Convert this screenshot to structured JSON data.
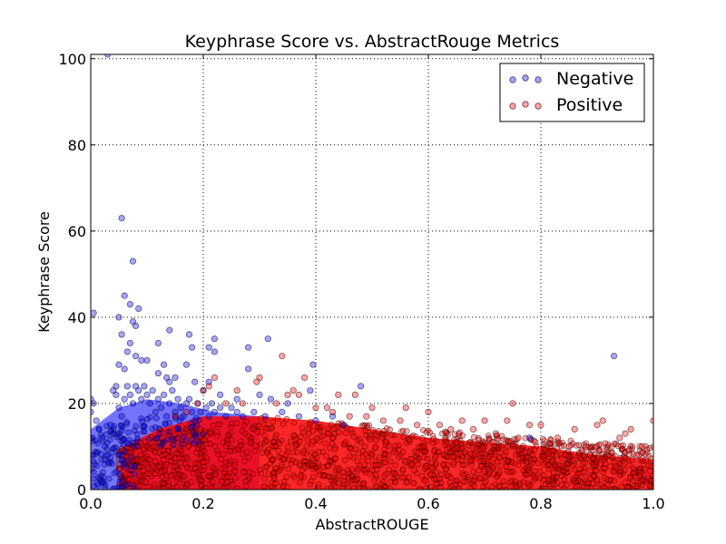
{
  "chart_data": {
    "type": "scatter",
    "title": "Keyphrase Score vs. AbstractRouge Metrics",
    "xlabel": "AbstractROUGE",
    "ylabel": "Keyphrase Score",
    "xlim": [
      0.0,
      1.0
    ],
    "ylim": [
      0,
      101
    ],
    "x_ticks": [
      "0.0",
      "0.2",
      "0.4",
      "0.6",
      "0.8",
      "1.0"
    ],
    "x_tick_values": [
      0.0,
      0.2,
      0.4,
      0.6,
      0.8,
      1.0
    ],
    "y_ticks": [
      "0",
      "20",
      "40",
      "60",
      "80",
      "100"
    ],
    "y_tick_values": [
      0,
      20,
      40,
      60,
      80,
      100
    ],
    "grid": true,
    "grid_style": "dotted",
    "legend_position": "top-right",
    "marker_alpha": 0.35,
    "series": [
      {
        "name": "Negative",
        "color": "#0000ff",
        "edge": "#000033",
        "points": [
          [
            0.03,
            101
          ],
          [
            0.055,
            63
          ],
          [
            0.075,
            53
          ],
          [
            0.005,
            41
          ],
          [
            0.06,
            45
          ],
          [
            0.05,
            40
          ],
          [
            0.07,
            43
          ],
          [
            0.075,
            39
          ],
          [
            0.08,
            38
          ],
          [
            0.085,
            42
          ],
          [
            0.055,
            36
          ],
          [
            0.065,
            32
          ],
          [
            0.07,
            34
          ],
          [
            0.08,
            31
          ],
          [
            0.09,
            30
          ],
          [
            0.06,
            28
          ],
          [
            0.05,
            29
          ],
          [
            0.1,
            30
          ],
          [
            0.14,
            37
          ],
          [
            0.175,
            36
          ],
          [
            0.12,
            34
          ],
          [
            0.18,
            33
          ],
          [
            0.21,
            33
          ],
          [
            0.22,
            32
          ],
          [
            0.22,
            35
          ],
          [
            0.28,
            33
          ],
          [
            0.315,
            35
          ],
          [
            0.28,
            28
          ],
          [
            0.395,
            29
          ],
          [
            0.12,
            27
          ],
          [
            0.13,
            29
          ],
          [
            0.135,
            26
          ],
          [
            0.14,
            25
          ],
          [
            0.15,
            26
          ],
          [
            0.17,
            29
          ],
          [
            0.185,
            25
          ],
          [
            0.21,
            25
          ],
          [
            0.23,
            22
          ],
          [
            0.26,
            21
          ],
          [
            0.3,
            22
          ],
          [
            0.32,
            21
          ],
          [
            0.35,
            20
          ],
          [
            0.39,
            23
          ],
          [
            0.48,
            24
          ],
          [
            0.93,
            31
          ],
          [
            0.0,
            21
          ],
          [
            0.0,
            18
          ],
          [
            0.005,
            20
          ],
          [
            0.01,
            16
          ],
          [
            0.015,
            14
          ],
          [
            0.02,
            12
          ],
          [
            0.025,
            10
          ],
          [
            0.03,
            8
          ],
          [
            0.035,
            15
          ],
          [
            0.04,
            23
          ],
          [
            0.045,
            22
          ],
          [
            0.045,
            24
          ],
          [
            0.05,
            19
          ],
          [
            0.055,
            17
          ],
          [
            0.06,
            21
          ],
          [
            0.065,
            24
          ],
          [
            0.07,
            22
          ],
          [
            0.075,
            20
          ],
          [
            0.08,
            24
          ],
          [
            0.085,
            23
          ],
          [
            0.09,
            21
          ],
          [
            0.095,
            24
          ],
          [
            0.1,
            22
          ],
          [
            0.105,
            20
          ],
          [
            0.11,
            23
          ],
          [
            0.115,
            18
          ],
          [
            0.12,
            21
          ],
          [
            0.125,
            19
          ],
          [
            0.13,
            22
          ],
          [
            0.135,
            17
          ],
          [
            0.14,
            20
          ],
          [
            0.145,
            23
          ],
          [
            0.15,
            18
          ],
          [
            0.155,
            21
          ],
          [
            0.16,
            19
          ],
          [
            0.165,
            17
          ],
          [
            0.17,
            20
          ],
          [
            0.175,
            21
          ],
          [
            0.18,
            18
          ],
          [
            0.185,
            16
          ],
          [
            0.19,
            20
          ],
          [
            0.195,
            18
          ],
          [
            0.2,
            23
          ],
          [
            0.205,
            19
          ],
          [
            0.21,
            17
          ],
          [
            0.215,
            20
          ],
          [
            0.22,
            18
          ],
          [
            0.23,
            19
          ],
          [
            0.24,
            17
          ],
          [
            0.25,
            19
          ],
          [
            0.26,
            18
          ],
          [
            0.27,
            17
          ],
          [
            0.29,
            18
          ],
          [
            0.31,
            17
          ],
          [
            0.34,
            18
          ],
          [
            0.37,
            17
          ],
          [
            0.4,
            16
          ],
          [
            0.43,
            17
          ],
          [
            0.45,
            15
          ],
          [
            0.78,
            12
          ]
        ]
      },
      {
        "name": "Positive",
        "color": "#ff0000",
        "edge": "#330000",
        "points": [
          [
            0.22,
            26
          ],
          [
            0.3,
            26
          ],
          [
            0.295,
            25
          ],
          [
            0.34,
            31
          ],
          [
            0.38,
            26
          ],
          [
            0.36,
            23
          ],
          [
            0.37,
            22
          ],
          [
            0.35,
            22
          ],
          [
            0.44,
            22
          ],
          [
            0.47,
            22
          ],
          [
            0.42,
            19
          ],
          [
            0.5,
            19
          ],
          [
            0.56,
            19
          ],
          [
            0.6,
            18
          ],
          [
            0.62,
            15
          ],
          [
            0.66,
            16
          ],
          [
            0.7,
            16
          ],
          [
            0.75,
            20
          ],
          [
            0.74,
            16
          ],
          [
            0.78,
            15
          ],
          [
            0.8,
            15
          ],
          [
            0.83,
            12
          ],
          [
            0.86,
            14
          ],
          [
            0.9,
            15
          ],
          [
            0.91,
            16
          ],
          [
            0.95,
            13
          ],
          [
            0.96,
            14
          ],
          [
            1.0,
            16
          ],
          [
            0.98,
            10
          ],
          [
            0.97,
            8
          ],
          [
            0.94,
            12
          ],
          [
            0.88,
            10
          ],
          [
            0.85,
            10
          ],
          [
            0.82,
            9
          ],
          [
            0.79,
            11
          ],
          [
            0.76,
            12
          ],
          [
            0.72,
            13
          ],
          [
            0.68,
            14
          ],
          [
            0.64,
            14
          ],
          [
            0.58,
            15
          ],
          [
            0.55,
            16
          ],
          [
            0.52,
            16
          ],
          [
            0.49,
            17
          ],
          [
            0.46,
            17
          ],
          [
            0.43,
            18
          ],
          [
            0.4,
            19
          ],
          [
            0.33,
            20
          ],
          [
            0.27,
            20
          ],
          [
            0.24,
            20
          ],
          [
            0.2,
            23
          ],
          [
            0.19,
            20
          ],
          [
            0.17,
            18
          ],
          [
            0.15,
            17
          ],
          [
            0.26,
            23
          ],
          [
            0.21,
            24
          ]
        ]
      }
    ]
  }
}
